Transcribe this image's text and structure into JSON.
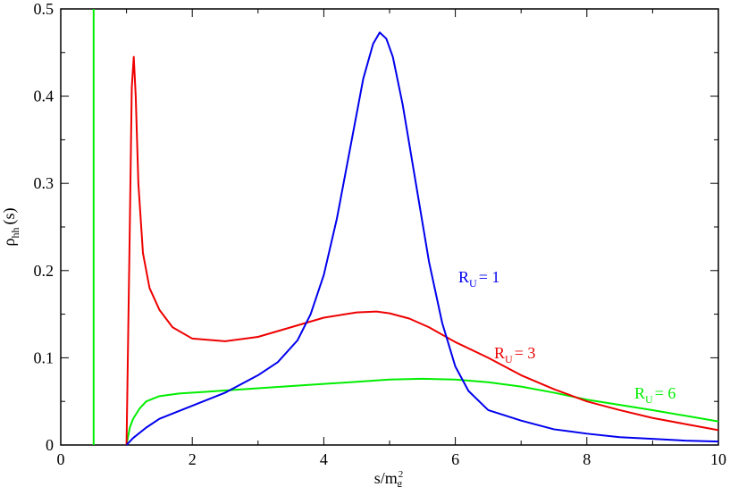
{
  "chart_data": {
    "type": "line",
    "xlabel": {
      "base": "s/m",
      "sub": "g",
      "sup": "2"
    },
    "ylabel": {
      "base": "ρ",
      "sub": "hh",
      "suffix": "(s)"
    },
    "xlim": [
      0,
      10
    ],
    "ylim": [
      0,
      0.5
    ],
    "xticks": [
      "0",
      "2",
      "4",
      "6",
      "8",
      "10"
    ],
    "yticks": [
      "0",
      "0.1",
      "0.2",
      "0.3",
      "0.4",
      "0.5"
    ],
    "grid": false,
    "vline": {
      "x": 0.5,
      "color": "#00ee00"
    },
    "series": [
      {
        "name": "R_U = 1",
        "label": {
          "R": "R",
          "sub": "U",
          "rest": "= 1"
        },
        "color": "#0000ee",
        "x": [
          1.0,
          1.1,
          1.3,
          1.5,
          2.0,
          2.5,
          3.0,
          3.3,
          3.6,
          3.8,
          4.0,
          4.2,
          4.4,
          4.6,
          4.75,
          4.85,
          4.95,
          5.05,
          5.2,
          5.4,
          5.6,
          5.8,
          6.0,
          6.2,
          6.5,
          7.0,
          7.5,
          8.0,
          8.5,
          9.0,
          9.5,
          10.0
        ],
        "y": [
          0.0,
          0.008,
          0.02,
          0.03,
          0.045,
          0.06,
          0.08,
          0.095,
          0.12,
          0.15,
          0.195,
          0.26,
          0.34,
          0.42,
          0.46,
          0.473,
          0.466,
          0.445,
          0.39,
          0.3,
          0.21,
          0.14,
          0.09,
          0.062,
          0.04,
          0.028,
          0.018,
          0.013,
          0.009,
          0.007,
          0.005,
          0.004
        ]
      },
      {
        "name": "R_U = 3",
        "label": {
          "R": "R",
          "sub": "U",
          "rest": "= 3"
        },
        "color": "#ee0000",
        "x": [
          1.0,
          1.05,
          1.08,
          1.11,
          1.14,
          1.18,
          1.25,
          1.35,
          1.5,
          1.7,
          2.0,
          2.5,
          3.0,
          3.5,
          4.0,
          4.5,
          4.8,
          5.0,
          5.3,
          5.6,
          6.0,
          6.5,
          7.0,
          7.5,
          8.0,
          8.5,
          9.0,
          9.5,
          10.0
        ],
        "y": [
          0.0,
          0.25,
          0.41,
          0.445,
          0.4,
          0.3,
          0.22,
          0.18,
          0.155,
          0.135,
          0.122,
          0.119,
          0.124,
          0.135,
          0.146,
          0.152,
          0.153,
          0.151,
          0.145,
          0.135,
          0.118,
          0.1,
          0.08,
          0.064,
          0.05,
          0.04,
          0.031,
          0.024,
          0.017
        ]
      },
      {
        "name": "R_U = 6",
        "label": {
          "R": "R",
          "sub": "U",
          "rest": "= 6"
        },
        "color": "#00ee00",
        "x": [
          1.0,
          1.05,
          1.1,
          1.2,
          1.3,
          1.5,
          1.8,
          2.2,
          3.0,
          4.0,
          5.0,
          5.5,
          6.0,
          6.5,
          7.0,
          7.5,
          8.0,
          9.0,
          10.0
        ],
        "y": [
          0.0,
          0.02,
          0.03,
          0.042,
          0.05,
          0.056,
          0.059,
          0.061,
          0.065,
          0.07,
          0.075,
          0.076,
          0.075,
          0.072,
          0.067,
          0.06,
          0.052,
          0.04,
          0.027
        ]
      }
    ]
  }
}
